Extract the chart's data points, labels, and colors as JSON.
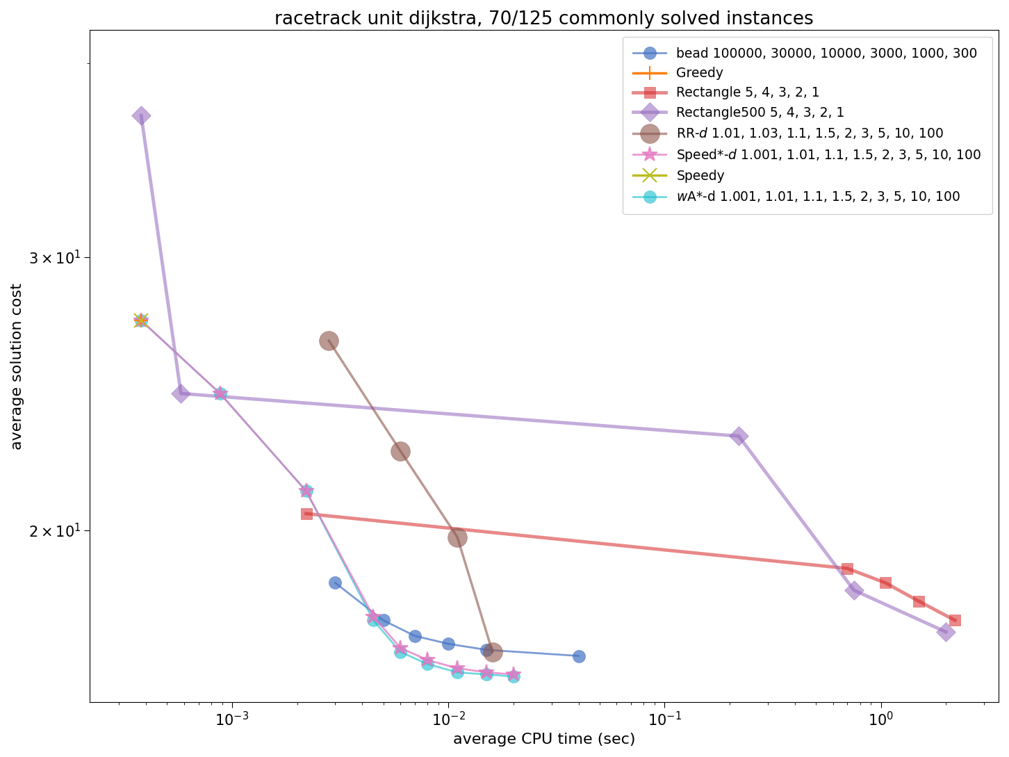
{
  "title": "racetrack unit dijkstra, 70/125 commonly solved instances",
  "xlabel": "average CPU time (sec)",
  "ylabel": "average solution cost",
  "series": [
    {
      "label": "bead 100000, 30000, 10000, 3000, 1000, 300",
      "color": "#4472C4",
      "marker": "o",
      "markersize": 13,
      "linewidth": 2.0,
      "alpha": 0.7,
      "zorder": 3,
      "x": [
        0.003,
        0.005,
        0.007,
        0.01,
        0.015,
        0.04
      ],
      "y": [
        18.5,
        17.5,
        17.1,
        16.9,
        16.75,
        16.6
      ]
    },
    {
      "label": "Greedy",
      "color": "#FF7F0E",
      "marker": "+",
      "markersize": 15,
      "linewidth": 2.5,
      "alpha": 1.0,
      "zorder": 5,
      "x": [
        0.00038
      ],
      "y": [
        27.3
      ]
    },
    {
      "label": "Rectangle 5, 4, 3, 2, 1",
      "color": "#D62728",
      "marker": "s",
      "markersize": 12,
      "linewidth": 3.5,
      "alpha": 0.55,
      "zorder": 2,
      "x": [
        0.0022,
        0.7,
        1.05,
        1.5,
        2.2
      ],
      "y": [
        20.5,
        18.9,
        18.5,
        18.0,
        17.5
      ]
    },
    {
      "label": "Rectangle500 5, 4, 3, 2, 1",
      "color": "#9467BD",
      "marker": "D",
      "markersize": 14,
      "linewidth": 3.5,
      "alpha": 0.55,
      "zorder": 2,
      "x": [
        0.00038,
        0.00058,
        0.22,
        0.75,
        2.0
      ],
      "y": [
        37.0,
        24.5,
        23.0,
        18.3,
        17.2
      ]
    },
    {
      "label": "RR-d 1.01, 1.03, 1.1, 1.5, 2, 3, 5, 10, 100",
      "color": "#8C564B",
      "marker": "o",
      "markersize": 20,
      "linewidth": 2.5,
      "alpha": 0.6,
      "zorder": 3,
      "x": [
        0.0028,
        0.006,
        0.011,
        0.016
      ],
      "y": [
        26.5,
        22.5,
        19.8,
        16.7
      ]
    },
    {
      "label": "Speed*-d 1.001, 1.01, 1.1, 1.5, 2, 3, 5, 10, 100",
      "color": "#E377C2",
      "marker": "*",
      "markersize": 16,
      "linewidth": 2.0,
      "alpha": 0.75,
      "zorder": 4,
      "x": [
        0.00038,
        0.00088,
        0.0022,
        0.0045,
        0.006,
        0.008,
        0.011,
        0.015,
        0.02
      ],
      "y": [
        27.3,
        24.5,
        21.2,
        17.6,
        16.8,
        16.5,
        16.3,
        16.2,
        16.15
      ]
    },
    {
      "label": "Speedy",
      "color": "#BCBD22",
      "marker": "x",
      "markersize": 15,
      "linewidth": 2.5,
      "alpha": 1.0,
      "zorder": 5,
      "x": [
        0.00038
      ],
      "y": [
        27.3
      ]
    },
    {
      "label": "wA*-d 1.001, 1.01, 1.1, 1.5, 2, 3, 5, 10, 100",
      "color": "#17BECF",
      "marker": "o",
      "markersize": 13,
      "linewidth": 2.0,
      "alpha": 0.6,
      "zorder": 3,
      "x": [
        0.00038,
        0.00088,
        0.0022,
        0.0045,
        0.006,
        0.008,
        0.011,
        0.015,
        0.02
      ],
      "y": [
        27.3,
        24.5,
        21.2,
        17.5,
        16.7,
        16.4,
        16.2,
        16.15,
        16.1
      ]
    }
  ],
  "xlim": [
    0.00022,
    3.5
  ],
  "ylim": [
    15.5,
    42.0
  ],
  "xticks": [
    0.001,
    0.01,
    0.1,
    1.0
  ],
  "yticks": [
    20,
    30
  ],
  "figsize": [
    14.52,
    10.89
  ],
  "dpi": 100,
  "legend_loc": "upper right",
  "legend_fontsize": 13.5,
  "title_fontsize": 19,
  "label_fontsize": 16,
  "tick_fontsize": 15
}
